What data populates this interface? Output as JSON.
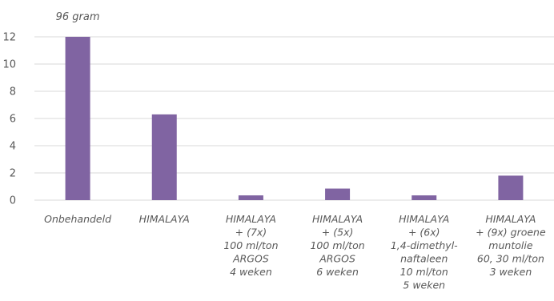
{
  "chart_data": {
    "type": "bar",
    "categories": [
      [
        "Onbehandeld"
      ],
      [
        "HIMALAYA"
      ],
      [
        "HIMALAYA",
        "+ (7x)",
        "100 ml/ton",
        "ARGOS",
        "4 weken"
      ],
      [
        "HIMALAYA",
        "+ (5x)",
        "100 ml/ton",
        "ARGOS",
        "6 weken"
      ],
      [
        "HIMALAYA",
        "+ (6x)",
        "1,4-dimethyl-",
        "naftaleen",
        "10  ml/ton",
        "5 weken"
      ],
      [
        "HIMALAYA",
        "+ (9x) groene",
        "muntolie",
        "60, 30 ml/ton",
        "3 weken"
      ]
    ],
    "values": [
      12,
      6.3,
      0.35,
      0.85,
      0.35,
      1.8
    ],
    "annotations": [
      {
        "category_index": 0,
        "text": "96 gram"
      }
    ],
    "ylim": [
      0,
      12
    ],
    "yticks": [
      0,
      2,
      4,
      6,
      8,
      10,
      12
    ],
    "grid": true,
    "colors": {
      "bar": "#8064A2",
      "grid": "#D9D9D9",
      "text": "#595959"
    }
  }
}
